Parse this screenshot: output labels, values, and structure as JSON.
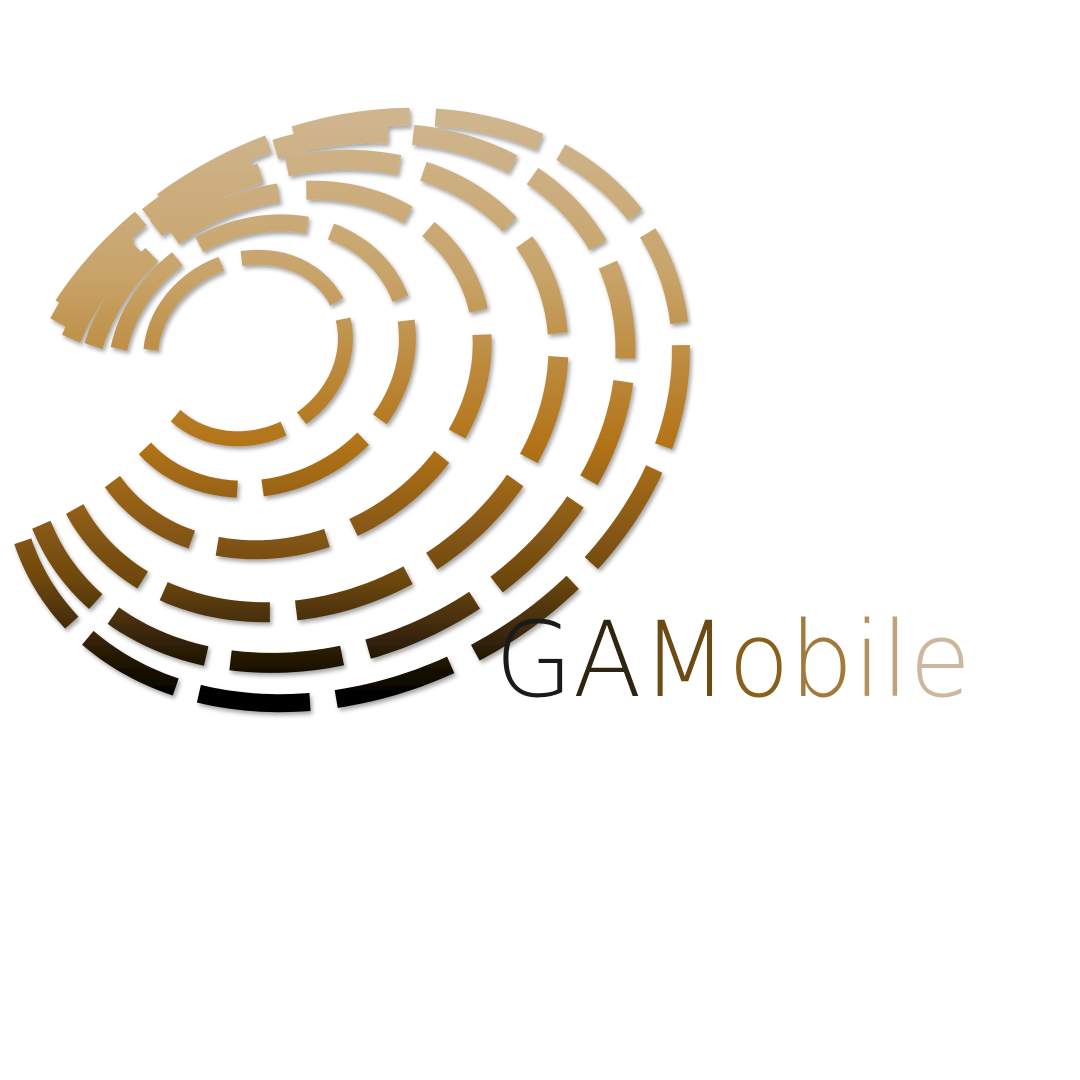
{
  "logo": {
    "wordmark": "GAMobile",
    "letter_colors": [
      "#1a1a1a",
      "#2e2410",
      "#6b4a14",
      "#8a5f1c",
      "#a47a3c",
      "#b58f5c",
      "#c1a27c",
      "#cdb89e"
    ],
    "emblem_icon": "concentric-segmented-globe-icon",
    "emblem_gradient": [
      "#cfb58e",
      "#c8a46a",
      "#b37418",
      "#6e4810",
      "#000000"
    ]
  }
}
